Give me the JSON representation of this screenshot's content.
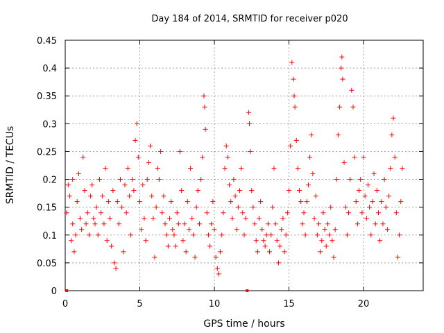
{
  "chart_data": {
    "type": "scatter",
    "title": "Day 184 of 2014, SRMTID for receiver p020",
    "xlabel": "GPS time / hours",
    "ylabel": "SRMTID / TECUs",
    "xlim": [
      0,
      24
    ],
    "ylim": [
      0,
      0.45
    ],
    "x_ticks": [
      0,
      5,
      10,
      15,
      20
    ],
    "x_tick_labels": [
      "0",
      "5",
      "10",
      "15",
      "20"
    ],
    "y_ticks": [
      0,
      0.05,
      0.1,
      0.15,
      0.2,
      0.25,
      0.3,
      0.35,
      0.4,
      0.45
    ],
    "y_tick_labels": [
      "0",
      "0.05",
      "0.1",
      "0.15",
      "0.2",
      "0.25",
      "0.3",
      "0.35",
      "0.4",
      "0.45"
    ],
    "grid": true,
    "marker": "plus",
    "color": "#ff0000",
    "zero_points": [
      {
        "x": 0.1,
        "y": 0
      },
      {
        "x": 12.2,
        "y": 0
      }
    ],
    "series": [
      {
        "name": "SRMTID",
        "points": [
          [
            0.1,
            0.14
          ],
          [
            0.2,
            0.19
          ],
          [
            0.3,
            0.17
          ],
          [
            0.4,
            0.09
          ],
          [
            0.5,
            0.12
          ],
          [
            0.5,
            0.2
          ],
          [
            0.6,
            0.07
          ],
          [
            0.7,
            0.1
          ],
          [
            0.8,
            0.16
          ],
          [
            0.9,
            0.21
          ],
          [
            1.0,
            0.13
          ],
          [
            1.1,
            0.11
          ],
          [
            1.2,
            0.24
          ],
          [
            1.3,
            0.18
          ],
          [
            1.4,
            0.12
          ],
          [
            1.5,
            0.14
          ],
          [
            1.6,
            0.1
          ],
          [
            1.7,
            0.17
          ],
          [
            1.8,
            0.19
          ],
          [
            1.9,
            0.13
          ],
          [
            2.0,
            0.12
          ],
          [
            2.1,
            0.15
          ],
          [
            2.2,
            0.1
          ],
          [
            2.3,
            0.2
          ],
          [
            2.4,
            0.14
          ],
          [
            2.5,
            0.17
          ],
          [
            2.6,
            0.12
          ],
          [
            2.7,
            0.22
          ],
          [
            2.8,
            0.09
          ],
          [
            2.9,
            0.16
          ],
          [
            3.0,
            0.13
          ],
          [
            3.1,
            0.08
          ],
          [
            3.2,
            0.18
          ],
          [
            3.3,
            0.05
          ],
          [
            3.4,
            0.04
          ],
          [
            3.5,
            0.16
          ],
          [
            3.6,
            0.12
          ],
          [
            3.7,
            0.2
          ],
          [
            3.8,
            0.15
          ],
          [
            3.9,
            0.07
          ],
          [
            4.0,
            0.19
          ],
          [
            4.1,
            0.14
          ],
          [
            4.2,
            0.22
          ],
          [
            4.3,
            0.17
          ],
          [
            4.4,
            0.1
          ],
          [
            4.5,
            0.2
          ],
          [
            4.6,
            0.18
          ],
          [
            4.7,
            0.27
          ],
          [
            4.8,
            0.3
          ],
          [
            4.9,
            0.24
          ],
          [
            5.0,
            0.16
          ],
          [
            5.1,
            0.11
          ],
          [
            5.2,
            0.19
          ],
          [
            5.3,
            0.13
          ],
          [
            5.4,
            0.09
          ],
          [
            5.5,
            0.2
          ],
          [
            5.6,
            0.23
          ],
          [
            5.7,
            0.26
          ],
          [
            5.8,
            0.17
          ],
          [
            5.9,
            0.13
          ],
          [
            6.0,
            0.06
          ],
          [
            6.1,
            0.15
          ],
          [
            6.2,
            0.22
          ],
          [
            6.3,
            0.2
          ],
          [
            6.4,
            0.25
          ],
          [
            6.5,
            0.14
          ],
          [
            6.6,
            0.17
          ],
          [
            6.7,
            0.12
          ],
          [
            6.8,
            0.1
          ],
          [
            6.9,
            0.08
          ],
          [
            7.0,
            0.13
          ],
          [
            7.1,
            0.16
          ],
          [
            7.2,
            0.11
          ],
          [
            7.3,
            0.1
          ],
          [
            7.4,
            0.08
          ],
          [
            7.5,
            0.14
          ],
          [
            7.6,
            0.12
          ],
          [
            7.7,
            0.25
          ],
          [
            7.8,
            0.18
          ],
          [
            7.9,
            0.09
          ],
          [
            8.0,
            0.12
          ],
          [
            8.1,
            0.07
          ],
          [
            8.2,
            0.16
          ],
          [
            8.3,
            0.11
          ],
          [
            8.4,
            0.22
          ],
          [
            8.5,
            0.13
          ],
          [
            8.6,
            0.1
          ],
          [
            8.7,
            0.06
          ],
          [
            8.8,
            0.15
          ],
          [
            8.9,
            0.18
          ],
          [
            9.0,
            0.12
          ],
          [
            9.1,
            0.2
          ],
          [
            9.2,
            0.24
          ],
          [
            9.3,
            0.35
          ],
          [
            9.35,
            0.33
          ],
          [
            9.4,
            0.29
          ],
          [
            9.5,
            0.14
          ],
          [
            9.6,
            0.1
          ],
          [
            9.7,
            0.08
          ],
          [
            9.8,
            0.12
          ],
          [
            9.9,
            0.16
          ],
          [
            10.0,
            0.11
          ],
          [
            10.1,
            0.06
          ],
          [
            10.2,
            0.04
          ],
          [
            10.3,
            0.03
          ],
          [
            10.4,
            0.07
          ],
          [
            10.5,
            0.1
          ],
          [
            10.6,
            0.14
          ],
          [
            10.7,
            0.22
          ],
          [
            10.8,
            0.26
          ],
          [
            10.9,
            0.24
          ],
          [
            11.0,
            0.19
          ],
          [
            11.1,
            0.16
          ],
          [
            11.2,
            0.13
          ],
          [
            11.3,
            0.2
          ],
          [
            11.4,
            0.17
          ],
          [
            11.5,
            0.11
          ],
          [
            11.6,
            0.15
          ],
          [
            11.7,
            0.18
          ],
          [
            11.8,
            0.22
          ],
          [
            11.9,
            0.14
          ],
          [
            12.0,
            0.1
          ],
          [
            12.1,
            0.13
          ],
          [
            12.3,
            0.32
          ],
          [
            12.35,
            0.3
          ],
          [
            12.4,
            0.25
          ],
          [
            12.5,
            0.18
          ],
          [
            12.6,
            0.15
          ],
          [
            12.7,
            0.12
          ],
          [
            12.8,
            0.09
          ],
          [
            12.9,
            0.07
          ],
          [
            13.0,
            0.13
          ],
          [
            13.1,
            0.16
          ],
          [
            13.2,
            0.11
          ],
          [
            13.3,
            0.09
          ],
          [
            13.4,
            0.08
          ],
          [
            13.5,
            0.1
          ],
          [
            13.6,
            0.12
          ],
          [
            13.7,
            0.07
          ],
          [
            13.8,
            0.1
          ],
          [
            13.9,
            0.15
          ],
          [
            14.0,
            0.22
          ],
          [
            14.1,
            0.12
          ],
          [
            14.2,
            0.09
          ],
          [
            14.3,
            0.05
          ],
          [
            14.4,
            0.08
          ],
          [
            14.5,
            0.11
          ],
          [
            14.6,
            0.13
          ],
          [
            14.7,
            0.07
          ],
          [
            14.8,
            0.1
          ],
          [
            14.9,
            0.14
          ],
          [
            15.0,
            0.18
          ],
          [
            15.1,
            0.26
          ],
          [
            15.2,
            0.41
          ],
          [
            15.3,
            0.38
          ],
          [
            15.35,
            0.35
          ],
          [
            15.4,
            0.33
          ],
          [
            15.5,
            0.27
          ],
          [
            15.6,
            0.22
          ],
          [
            15.7,
            0.18
          ],
          [
            15.8,
            0.16
          ],
          [
            15.9,
            0.12
          ],
          [
            16.0,
            0.14
          ],
          [
            16.1,
            0.1
          ],
          [
            16.2,
            0.16
          ],
          [
            16.3,
            0.19
          ],
          [
            16.4,
            0.24
          ],
          [
            16.5,
            0.28
          ],
          [
            16.6,
            0.21
          ],
          [
            16.7,
            0.13
          ],
          [
            16.8,
            0.17
          ],
          [
            16.9,
            0.1
          ],
          [
            17.0,
            0.12
          ],
          [
            17.1,
            0.07
          ],
          [
            17.2,
            0.09
          ],
          [
            17.3,
            0.14
          ],
          [
            17.4,
            0.11
          ],
          [
            17.5,
            0.08
          ],
          [
            17.6,
            0.12
          ],
          [
            17.7,
            0.1
          ],
          [
            17.8,
            0.15
          ],
          [
            17.9,
            0.09
          ],
          [
            18.0,
            0.06
          ],
          [
            18.1,
            0.11
          ],
          [
            18.2,
            0.2
          ],
          [
            18.3,
            0.28
          ],
          [
            18.4,
            0.33
          ],
          [
            18.5,
            0.4
          ],
          [
            18.55,
            0.42
          ],
          [
            18.6,
            0.38
          ],
          [
            18.7,
            0.23
          ],
          [
            18.8,
            0.15
          ],
          [
            18.9,
            0.1
          ],
          [
            19.0,
            0.14
          ],
          [
            19.1,
            0.2
          ],
          [
            19.2,
            0.36
          ],
          [
            19.3,
            0.33
          ],
          [
            19.4,
            0.24
          ],
          [
            19.5,
            0.16
          ],
          [
            19.6,
            0.12
          ],
          [
            19.7,
            0.18
          ],
          [
            19.8,
            0.2
          ],
          [
            19.9,
            0.14
          ],
          [
            20.0,
            0.24
          ],
          [
            20.1,
            0.17
          ],
          [
            20.2,
            0.13
          ],
          [
            20.3,
            0.19
          ],
          [
            20.4,
            0.15
          ],
          [
            20.5,
            0.1
          ],
          [
            20.6,
            0.16
          ],
          [
            20.7,
            0.21
          ],
          [
            20.8,
            0.12
          ],
          [
            20.9,
            0.18
          ],
          [
            21.0,
            0.14
          ],
          [
            21.1,
            0.09
          ],
          [
            21.2,
            0.16
          ],
          [
            21.3,
            0.12
          ],
          [
            21.4,
            0.2
          ],
          [
            21.5,
            0.15
          ],
          [
            21.6,
            0.11
          ],
          [
            21.7,
            0.17
          ],
          [
            21.8,
            0.22
          ],
          [
            21.9,
            0.28
          ],
          [
            22.0,
            0.31
          ],
          [
            22.1,
            0.24
          ],
          [
            22.2,
            0.14
          ],
          [
            22.3,
            0.06
          ],
          [
            22.4,
            0.1
          ],
          [
            22.5,
            0.16
          ],
          [
            22.6,
            0.22
          ]
        ]
      }
    ]
  }
}
